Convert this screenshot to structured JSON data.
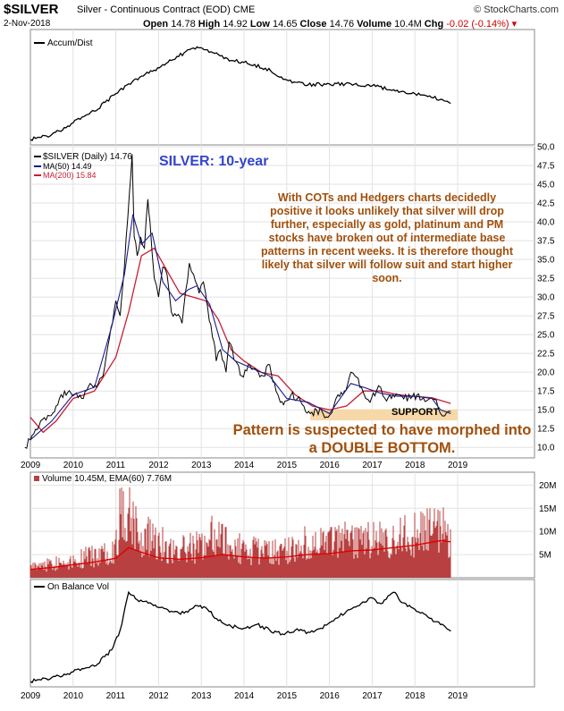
{
  "header": {
    "symbol": "$SILVER",
    "description": "Silver - Continuous Contract (EOD) CME",
    "brand": "© StockCharts.com",
    "date": "2-Nov-2018",
    "open_label": "Open",
    "open": "14.78",
    "high_label": "High",
    "high": "14.92",
    "low_label": "Low",
    "low": "14.65",
    "close_label": "Close",
    "close": "14.76",
    "volume_label": "Volume",
    "volume": "10.4M",
    "chg_label": "Chg",
    "chg": "-0.02 (-0.14%)"
  },
  "annotations": {
    "title": "SILVER: 10-year",
    "commentary": "With COTs and Hedgers charts decidedly positive it looks unlikely that silver will drop further, especially as gold, platinum and PM stocks have broken out of intermediate base patterns in recent weeks. It is therefore thought likely that silver will follow suit and start higher soon.",
    "support": "SUPPORT",
    "pattern_note": "Pattern is suspected to have morphed into a DOUBLE BOTTOM."
  },
  "colors": {
    "price": "#000000",
    "ma50": "#1a1a8c",
    "ma200": "#c81e32",
    "support_band": "#f7d8a8",
    "commentary": "#a0500c",
    "title": "#3344cc",
    "volume_bars": "#b84040",
    "volume_ema": "#e00000"
  },
  "chart_data": [
    {
      "type": "line",
      "panel": "Accum/Dist",
      "legend": [
        "Accum/Dist"
      ],
      "x": [
        2009.0,
        2009.5,
        2010.0,
        2010.5,
        2011.0,
        2011.3,
        2011.6,
        2011.9,
        2012.3,
        2012.6,
        2012.9,
        2013.1,
        2013.4,
        2013.7,
        2014.0,
        2014.5,
        2015.0,
        2015.5,
        2016.0,
        2016.5,
        2017.0,
        2017.5,
        2018.0,
        2018.3,
        2018.6,
        2018.84
      ],
      "values": [
        1.0,
        6.0,
        18.0,
        30.0,
        48.0,
        58.0,
        66.0,
        72.0,
        82.0,
        90.0,
        96.0,
        93.0,
        88.0,
        82.0,
        80.0,
        74.0,
        62.0,
        57.0,
        58.0,
        58.0,
        56.0,
        52.0,
        48.0,
        45.0,
        42.0,
        38.0
      ]
    },
    {
      "type": "line",
      "panel": "price",
      "title": "SILVER: 10-year",
      "legend": [
        "$SILVER (Daily) 14.76",
        "MA(50) 14.49",
        "MA(200) 15.84"
      ],
      "x_ticks": [
        "2009",
        "2010",
        "2011",
        "2012",
        "2013",
        "2014",
        "2015",
        "2016",
        "2017",
        "2018",
        "2019"
      ],
      "y_ticks": [
        10.0,
        12.5,
        15.0,
        17.5,
        20.0,
        22.5,
        25.0,
        27.5,
        30.0,
        32.5,
        35.0,
        37.5,
        40.0,
        42.5,
        45.0,
        47.5,
        50.0
      ],
      "ylim": [
        8.6,
        50.0
      ],
      "y_scale": "linear",
      "series": [
        {
          "name": "$SILVER (Daily) 14.76",
          "x": [
            2008.87,
            2009.0,
            2009.2,
            2009.45,
            2009.6,
            2009.8,
            2009.95,
            2010.2,
            2010.4,
            2010.55,
            2010.7,
            2010.85,
            2011.0,
            2011.1,
            2011.2,
            2011.32,
            2011.38,
            2011.43,
            2011.5,
            2011.58,
            2011.67,
            2011.75,
            2011.8,
            2011.9,
            2012.0,
            2012.1,
            2012.2,
            2012.3,
            2012.42,
            2012.55,
            2012.72,
            2012.82,
            2012.95,
            2013.05,
            2013.15,
            2013.3,
            2013.35,
            2013.45,
            2013.58,
            2013.65,
            2013.8,
            2013.95,
            2014.1,
            2014.25,
            2014.45,
            2014.6,
            2014.75,
            2014.85,
            2015.0,
            2015.1,
            2015.25,
            2015.4,
            2015.55,
            2015.7,
            2015.85,
            2015.97,
            2016.1,
            2016.2,
            2016.35,
            2016.5,
            2016.6,
            2016.75,
            2016.85,
            2016.95,
            2017.1,
            2017.2,
            2017.3,
            2017.45,
            2017.6,
            2017.7,
            2017.9,
            2018.05,
            2018.2,
            2018.35,
            2018.5,
            2018.6,
            2018.7,
            2018.84
          ],
          "values": [
            10.0,
            11.0,
            12.8,
            14.2,
            15.5,
            17.5,
            17.2,
            16.5,
            18.5,
            18.0,
            19.5,
            24.5,
            29.5,
            27.5,
            34.0,
            44.0,
            49.0,
            38.0,
            35.5,
            38.0,
            36.5,
            43.0,
            40.0,
            32.5,
            30.0,
            34.0,
            33.0,
            28.0,
            27.5,
            26.5,
            34.5,
            33.0,
            30.5,
            32.0,
            28.5,
            24.0,
            21.5,
            23.0,
            20.0,
            24.0,
            21.5,
            19.5,
            21.0,
            20.5,
            19.5,
            21.0,
            17.5,
            16.0,
            16.2,
            17.0,
            16.5,
            15.5,
            14.5,
            15.0,
            14.5,
            14.0,
            15.5,
            17.0,
            17.5,
            20.0,
            19.5,
            18.0,
            16.5,
            16.0,
            17.5,
            18.0,
            16.5,
            16.5,
            17.0,
            16.8,
            16.5,
            17.0,
            16.6,
            16.5,
            16.3,
            14.5,
            14.2,
            14.76
          ]
        },
        {
          "name": "MA(50) 14.49",
          "x": [
            2009.0,
            2009.5,
            2010.0,
            2010.5,
            2010.9,
            2011.2,
            2011.4,
            2011.6,
            2011.85,
            2012.1,
            2012.4,
            2012.7,
            2012.9,
            2013.2,
            2013.5,
            2013.8,
            2014.2,
            2014.6,
            2015.0,
            2015.5,
            2016.0,
            2016.5,
            2016.8,
            2017.2,
            2017.6,
            2018.0,
            2018.4,
            2018.6,
            2018.84
          ],
          "values": [
            11.0,
            13.5,
            17.0,
            18.0,
            26.0,
            33.0,
            41.0,
            37.0,
            38.5,
            32.0,
            29.5,
            31.0,
            31.5,
            29.0,
            23.0,
            21.5,
            20.5,
            19.5,
            16.5,
            16.0,
            14.5,
            18.5,
            18.0,
            17.2,
            16.8,
            16.8,
            16.5,
            15.0,
            14.49
          ]
        },
        {
          "name": "MA(200) 15.84",
          "x": [
            2009.0,
            2009.3,
            2009.6,
            2010.0,
            2010.5,
            2011.0,
            2011.3,
            2011.6,
            2011.9,
            2012.2,
            2012.5,
            2012.8,
            2013.1,
            2013.4,
            2013.7,
            2014.0,
            2014.4,
            2014.8,
            2015.2,
            2015.6,
            2016.0,
            2016.4,
            2016.8,
            2017.2,
            2017.6,
            2018.0,
            2018.4,
            2018.84
          ],
          "values": [
            14.0,
            12.0,
            13.5,
            16.5,
            17.5,
            22.0,
            28.0,
            35.5,
            36.5,
            33.5,
            30.5,
            30.0,
            29.5,
            27.0,
            23.0,
            21.5,
            20.0,
            19.5,
            17.0,
            15.5,
            15.0,
            15.5,
            17.5,
            17.5,
            17.0,
            16.8,
            16.6,
            15.84
          ]
        }
      ],
      "bands": [
        {
          "label": "SUPPORT",
          "y": [
            13.6,
            15.05
          ],
          "x": [
            2015.55,
            2019.0
          ]
        }
      ]
    },
    {
      "type": "bar",
      "panel": "Volume",
      "legend": [
        "Volume 10.45M, EMA(60) 7.76M"
      ],
      "y_ticks": [
        "5M",
        "10M",
        "15M",
        "20M"
      ],
      "ylim": [
        0,
        22000000
      ],
      "series": [
        {
          "name": "Volume",
          "x": [
            2009.0,
            2009.5,
            2010.0,
            2010.5,
            2011.0,
            2011.1,
            2011.3,
            2011.35,
            2011.6,
            2011.85,
            2012.2,
            2012.5,
            2013.0,
            2013.3,
            2013.5,
            2014.0,
            2014.5,
            2015.0,
            2015.5,
            2016.0,
            2016.5,
            2017.0,
            2017.5,
            2018.0,
            2018.3,
            2018.6,
            2018.84
          ],
          "values": [
            3000000,
            4000000,
            5000000,
            6000000,
            8500000,
            17000000,
            21000000,
            18000000,
            10500000,
            12000000,
            8000000,
            7500000,
            9000000,
            12500000,
            10000000,
            8000000,
            7000000,
            8000000,
            9500000,
            9000000,
            11000000,
            10000000,
            11000000,
            12000000,
            12500000,
            14000000,
            10450000
          ]
        },
        {
          "name": "EMA(60)",
          "x": [
            2009.0,
            2009.5,
            2010.0,
            2010.5,
            2011.0,
            2011.3,
            2011.6,
            2012.0,
            2012.5,
            2013.0,
            2013.5,
            2014.0,
            2014.5,
            2015.0,
            2015.5,
            2016.0,
            2016.5,
            2017.0,
            2017.5,
            2018.0,
            2018.3,
            2018.6,
            2018.84
          ],
          "values": [
            1800000,
            2200000,
            2800000,
            3400000,
            4200000,
            6500000,
            5500000,
            4300000,
            4000000,
            4300000,
            5000000,
            4500000,
            4200000,
            4500000,
            5000000,
            5200000,
            5800000,
            6000000,
            6500000,
            7000000,
            7500000,
            8000000,
            7760000
          ]
        }
      ]
    },
    {
      "type": "line",
      "panel": "On Balance Vol",
      "legend": [
        "On Balance Vol"
      ],
      "x_ticks": [
        "2009",
        "2010",
        "2011",
        "2012",
        "2013",
        "2014",
        "2015",
        "2016",
        "2017",
        "2018",
        "2019"
      ],
      "x": [
        2009.0,
        2009.5,
        2010.0,
        2010.5,
        2010.9,
        2011.1,
        2011.3,
        2011.5,
        2011.8,
        2012.0,
        2012.3,
        2012.6,
        2012.9,
        2013.1,
        2013.4,
        2013.7,
        2014.0,
        2014.3,
        2014.6,
        2014.9,
        2015.2,
        2015.5,
        2015.8,
        2016.1,
        2016.4,
        2016.7,
        2017.0,
        2017.2,
        2017.5,
        2017.7,
        2018.0,
        2018.3,
        2018.6,
        2018.84
      ],
      "values": [
        2.0,
        6.0,
        12.0,
        18.0,
        35.0,
        56.0,
        96.0,
        88.0,
        85.0,
        80.0,
        76.0,
        74.0,
        82.0,
        80.0,
        66.0,
        60.0,
        58.0,
        62.0,
        56.0,
        52.0,
        56.0,
        54.0,
        58.0,
        66.0,
        76.0,
        82.0,
        90.0,
        84.0,
        96.0,
        85.0,
        78.0,
        70.0,
        62.0,
        55.0
      ]
    }
  ]
}
